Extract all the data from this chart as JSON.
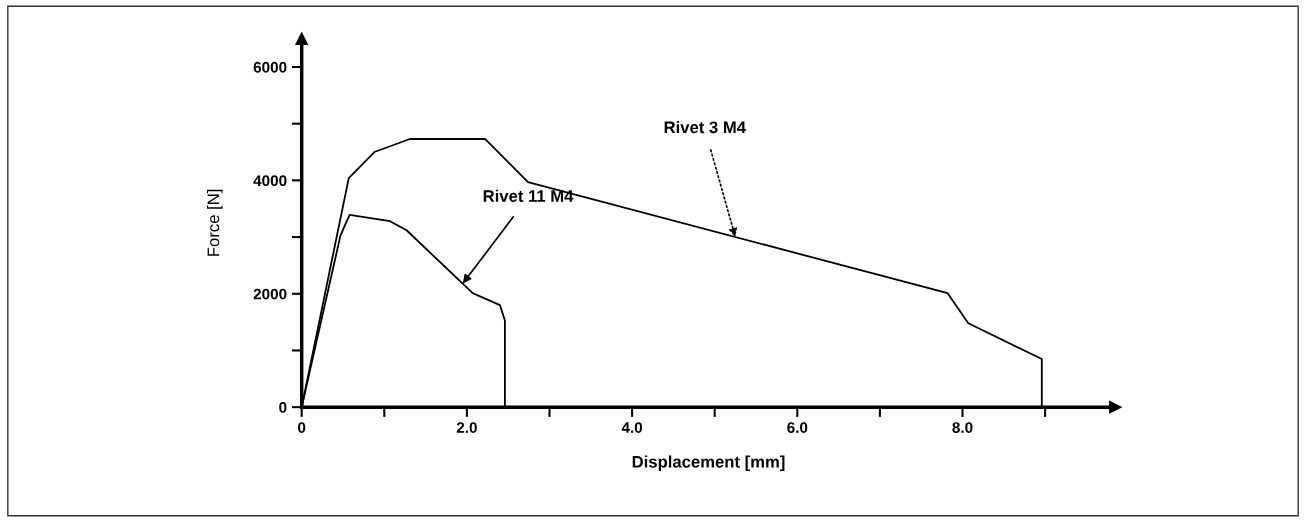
{
  "chart_data": {
    "type": "line",
    "xlabel": "Displacement [mm]",
    "ylabel": "Force [N]",
    "series": [
      {
        "color": "#000000",
        "x": [
          0,
          0.57,
          0.88,
          1.31,
          2.22,
          2.74,
          7.82,
          8.07,
          8.96,
          8.96
        ],
        "values": [
          0,
          4040,
          4500,
          4730,
          4730,
          3970,
          2010,
          1480,
          850,
          0
        ]
      },
      {
        "color": "#000000",
        "x": [
          0,
          0.47,
          0.58,
          1.07,
          1.27,
          2.07,
          2.4,
          2.46,
          2.46
        ],
        "values": [
          0,
          3030,
          3390,
          3280,
          3120,
          2010,
          1800,
          1530,
          0
        ]
      }
    ],
    "annotations": [
      {
        "text": "Rivet 3 M4",
        "x": 5.25,
        "y": 3000
      },
      {
        "text": "Rivet 11 M4",
        "x": 1.95,
        "y": 2180
      }
    ],
    "xlim": [
      0,
      9.85
    ],
    "ylim": [
      0,
      6500
    ],
    "xticks": [
      0,
      {
        "value": 1.0,
        "label": null
      },
      {
        "value": 2.0,
        "label": "2.0"
      },
      {
        "value": 3.0,
        "label": null
      },
      {
        "value": 4.0,
        "label": "4.0"
      },
      {
        "value": 5.0,
        "label": null
      },
      {
        "value": 6.0,
        "label": "6.0"
      },
      {
        "value": 7.0,
        "label": null
      },
      {
        "value": 8.0,
        "label": "8.0"
      },
      {
        "value": 9.0,
        "label": null
      }
    ],
    "yticks": [
      0,
      {
        "value": 1000,
        "label": null
      },
      2000,
      {
        "value": 3000,
        "label": null
      },
      4000,
      {
        "value": 5000,
        "label": null
      },
      6000
    ],
    "grid": false,
    "legend": false,
    "marker": "none",
    "line_style": "solid"
  }
}
